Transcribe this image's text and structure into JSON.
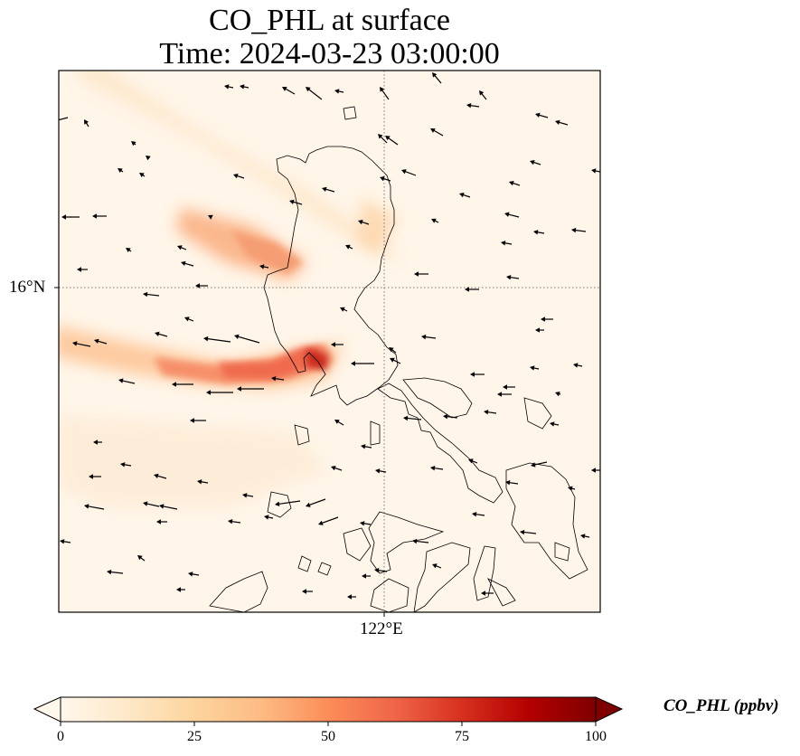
{
  "title": {
    "line1": "CO_PHL at surface",
    "line2": "Time: 2024-03-23 03:00:00"
  },
  "axes": {
    "lat_tick": "16°N",
    "lon_tick": "122°E"
  },
  "colorbar": {
    "label": "CO_PHL (ppbv)",
    "ticks": [
      "0",
      "25",
      "50",
      "75",
      "100"
    ],
    "min": 0,
    "max": 100,
    "colormap": [
      "#fff7ec",
      "#fee8c8",
      "#fdd49e",
      "#fdbb84",
      "#fc8d59",
      "#ef6548",
      "#d7301f",
      "#b30000",
      "#7f0000"
    ]
  },
  "colors": {
    "coastline": "#000000",
    "gridline": "#777777",
    "background": "#fff5e8"
  }
}
